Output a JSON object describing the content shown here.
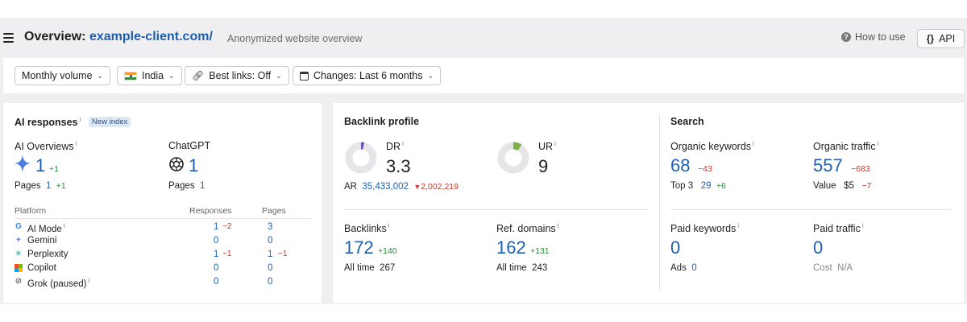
{
  "header": {
    "title_prefix": "Overview:",
    "domain": "example-client.com/",
    "subtitle": "Anonymized website overview",
    "how_to_use": "How to use",
    "api_label": "API",
    "api_icon_text": "{}",
    "help_icon_text": "?"
  },
  "filters": {
    "volume": "Monthly volume",
    "country": "India",
    "best_links": "Best links: Off",
    "changes": "Changes: Last 6 months"
  },
  "ai": {
    "title": "AI responses",
    "info": "i",
    "badge": "New index",
    "overviews": {
      "label": "AI Overviews",
      "value": "1",
      "delta": "+1",
      "pages_label": "Pages",
      "pages_value": "1",
      "pages_delta": "+1"
    },
    "chatgpt": {
      "label": "ChatGPT",
      "value": "1",
      "pages_label": "Pages",
      "pages_value": "1"
    },
    "table_headers": {
      "platform": "Platform",
      "responses": "Responses",
      "pages": "Pages"
    },
    "platforms": [
      {
        "name": "AI Mode",
        "icon": "google-icon",
        "responses": "1",
        "responses_delta": "−2",
        "pages": "3",
        "pages_delta": ""
      },
      {
        "name": "Gemini",
        "icon": "gemini-icon",
        "responses": "0",
        "responses_delta": "",
        "pages": "0",
        "pages_delta": ""
      },
      {
        "name": "Perplexity",
        "icon": "perplexity-icon",
        "responses": "1",
        "responses_delta": "−1",
        "pages": "1",
        "pages_delta": "−1"
      },
      {
        "name": "Copilot",
        "icon": "copilot-icon",
        "responses": "0",
        "responses_delta": "",
        "pages": "0",
        "pages_delta": ""
      },
      {
        "name": "Grok (paused)",
        "icon": "grok-icon",
        "responses": "0",
        "responses_delta": "",
        "pages": "0",
        "pages_delta": ""
      }
    ]
  },
  "backlinks": {
    "title": "Backlink profile",
    "dr": {
      "label": "DR",
      "value": "3.3",
      "ring_fraction": 0.033
    },
    "ur": {
      "label": "UR",
      "value": "9",
      "ring_fraction": 0.09
    },
    "ar": {
      "label": "AR",
      "value": "35,433,002",
      "delta": "2,002,219"
    },
    "backlinks": {
      "label": "Backlinks",
      "value": "172",
      "delta": "+140",
      "all_time_label": "All time",
      "all_time_value": "267"
    },
    "ref_domains": {
      "label": "Ref. domains",
      "value": "162",
      "delta": "+131",
      "all_time_label": "All time",
      "all_time_value": "243"
    }
  },
  "search": {
    "title": "Search",
    "organic_keywords": {
      "label": "Organic keywords",
      "value": "68",
      "delta": "−43",
      "top3_label": "Top 3",
      "top3_value": "29",
      "top3_delta": "+6"
    },
    "organic_traffic": {
      "label": "Organic traffic",
      "value": "557",
      "delta": "−683",
      "value_label": "Value",
      "value_amount": "$5",
      "value_delta": "−7"
    },
    "paid_keywords": {
      "label": "Paid keywords",
      "value": "0",
      "ads_label": "Ads",
      "ads_value": "0"
    },
    "paid_traffic": {
      "label": "Paid traffic",
      "value": "0",
      "cost_label": "Cost",
      "cost_value": "N/A"
    }
  },
  "colors": {
    "accent": "#1f5fb0",
    "up": "#2a8a3a",
    "down": "#c33a2a",
    "dr_ring": "#6b4fbb",
    "ur_ring": "#7bb344",
    "ring_bg": "#e6e6e8"
  }
}
